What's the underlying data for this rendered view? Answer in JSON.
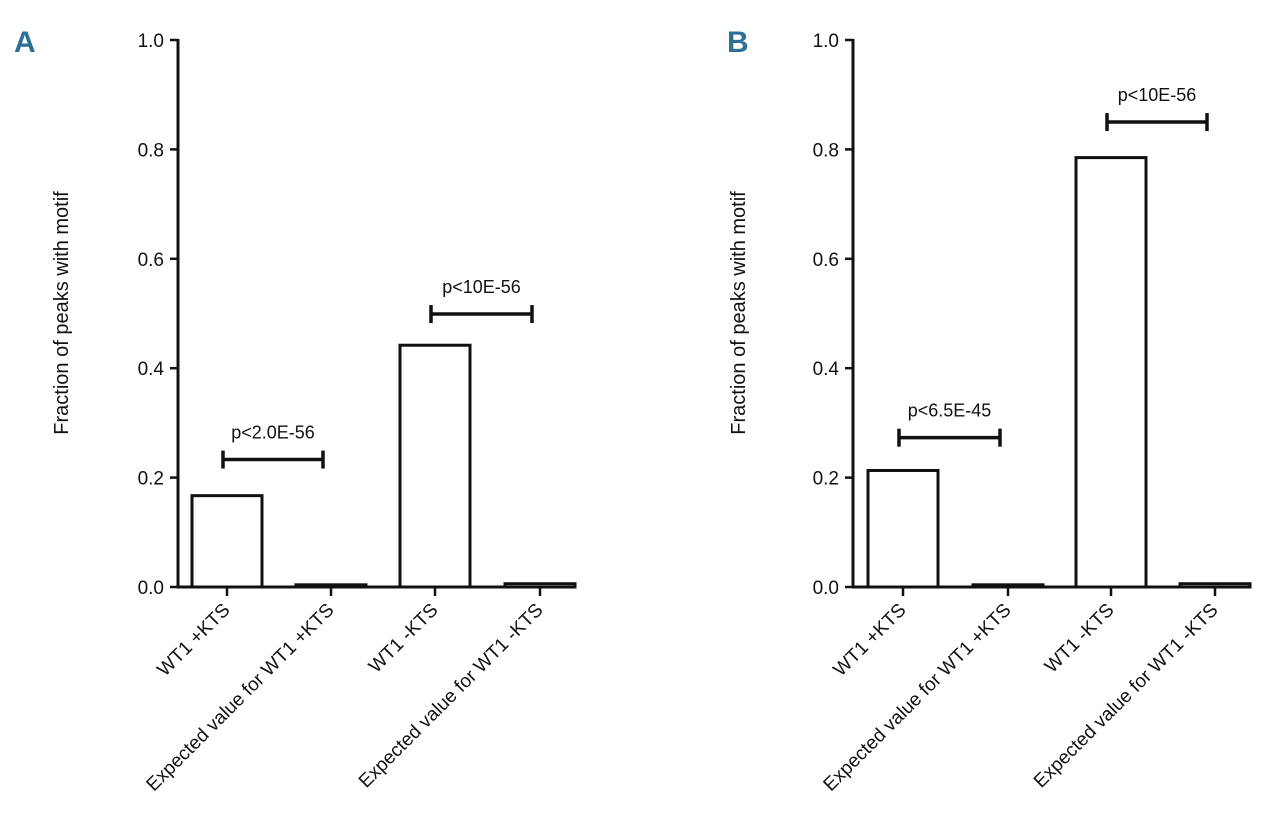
{
  "chart_data": [
    {
      "type": "bar",
      "panel": "A",
      "ylabel": "Fraction of peaks with motif",
      "ylim": [
        0,
        1.0
      ],
      "yticks": [
        "0.0",
        "0.2",
        "0.4",
        "0.6",
        "0.8",
        "1.0"
      ],
      "categories": [
        "WT1 +KTS",
        "Expected value for WT1 +KTS",
        "WT1 -KTS",
        "Expected value for WT1 -KTS"
      ],
      "values": [
        0.167,
        0.004,
        0.442,
        0.006
      ],
      "annotations": [
        {
          "text": "p<2.0E-56",
          "from": 0,
          "to": 1,
          "y": 0.233
        },
        {
          "text": "p<10E-56",
          "from": 2,
          "to": 3,
          "y": 0.499
        }
      ]
    },
    {
      "type": "bar",
      "panel": "B",
      "ylabel": "Fraction of peaks with motif",
      "ylim": [
        0,
        1.0
      ],
      "yticks": [
        "0.0",
        "0.2",
        "0.4",
        "0.6",
        "0.8",
        "1.0"
      ],
      "categories": [
        "WT1 +KTS",
        "Expected value for WT1 +KTS",
        "WT1 -KTS",
        "Expected value for WT1 -KTS"
      ],
      "values": [
        0.213,
        0.004,
        0.785,
        0.006
      ],
      "annotations": [
        {
          "text": "p<6.5E-45",
          "from": 0,
          "to": 1,
          "y": 0.273
        },
        {
          "text": "p<10E-56",
          "from": 2,
          "to": 3,
          "y": 0.85
        }
      ]
    }
  ],
  "theme": {
    "panel_letter_color": "#2f6f96",
    "ink": "#111111"
  }
}
